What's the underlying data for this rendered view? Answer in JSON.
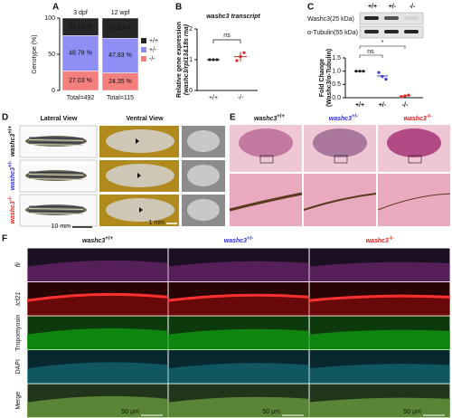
{
  "panel_a": {
    "label": "A",
    "y_label": "Genotype (%)",
    "categories": [
      "3 dpf",
      "12 wpf"
    ],
    "totals": [
      "Total=492",
      "Total=115"
    ],
    "ylim": [
      0,
      100
    ],
    "yticks": [
      0,
      50,
      100
    ],
    "series": [
      {
        "name": "-/-",
        "color": "#f4807d",
        "values": [
          27.03,
          24.35
        ],
        "value_labels": [
          "27.03 %",
          "24.35 %"
        ]
      },
      {
        "name": "+/-",
        "color": "#8e8ef5",
        "values": [
          48.78,
          47.83
        ],
        "value_labels": [
          "48.78 %",
          "47.83 %"
        ]
      },
      {
        "name": "+/+",
        "color": "#262626",
        "values": [
          24.19,
          27.83
        ],
        "value_labels": [
          "24.19 %",
          "27.83 %"
        ]
      }
    ]
  },
  "panel_b": {
    "label": "B",
    "title": "washc3 transcript",
    "y_label": "Relative gene expression",
    "y_label_sub": "(washc3/rpl13&18s rna)",
    "ylim": [
      0,
      2
    ],
    "yticks": [
      0,
      1,
      2
    ],
    "categories": [
      "+/+",
      "-/-"
    ],
    "colors": [
      "#222222",
      "#d62728"
    ],
    "means": [
      1,
      1.1
    ],
    "errors": [
      0,
      0.15
    ],
    "points": [
      [
        1,
        1,
        1
      ],
      [
        0.97,
        1.1,
        1.23
      ]
    ],
    "annotation": "ns"
  },
  "panel_c": {
    "label": "C",
    "blot_labels": [
      "Washc3(25 kDa)",
      "α-Tubulin(55 kDa)"
    ],
    "categories": [
      "+/+",
      "+/-",
      "-/-"
    ],
    "colors": [
      "#222222",
      "#3a3ad6",
      "#d62728"
    ],
    "y_label": "Fold Change",
    "y_label_sub": "(Washc3/α-Tubulin)",
    "ylim": [
      0,
      1.5
    ],
    "yticks": [
      {
        "value": 0,
        "label": "0.0"
      },
      {
        "value": 0.5,
        "label": "0.5"
      },
      {
        "value": 1,
        "label": "1.0"
      },
      {
        "value": 1.5,
        "label": "1.5"
      }
    ],
    "means": [
      1,
      0.82,
      0.07
    ],
    "points": [
      [
        1,
        1,
        1
      ],
      [
        0.95,
        0.8,
        0.7
      ],
      [
        0.04,
        0.07,
        0.1
      ]
    ],
    "annotations": [
      "ns",
      "*"
    ]
  },
  "panel_d": {
    "label": "D",
    "headers": [
      "Lateral View",
      "Ventral View"
    ],
    "gene": "washc3",
    "genotypes": [
      "+/+",
      "+/-",
      "-/-"
    ],
    "scale_bars": [
      "10 mm",
      "1 mm"
    ]
  },
  "panel_e": {
    "label": "E",
    "gene": "washc3",
    "genotypes": [
      "+/+",
      "+/-",
      "-/-"
    ]
  },
  "panel_f": {
    "label": "F",
    "gene": "washc3",
    "genotypes": [
      "+/+",
      "+/-",
      "-/-"
    ],
    "rows": [
      {
        "name": "fli",
        "color": "#c040c0",
        "bg": "#1c0f22"
      },
      {
        "name": "tcf21",
        "color": "#e01010",
        "bg": "#2a0404"
      },
      {
        "name": "Tropomyosin",
        "color": "#10a010",
        "bg": "#0d3a0d"
      },
      {
        "name": "DAPI",
        "color": "#20b0c0",
        "bg": "#082830"
      },
      {
        "name": "Merge",
        "color": "#000000",
        "bg": "#20351a"
      }
    ],
    "scale_bar": "50 µm"
  }
}
